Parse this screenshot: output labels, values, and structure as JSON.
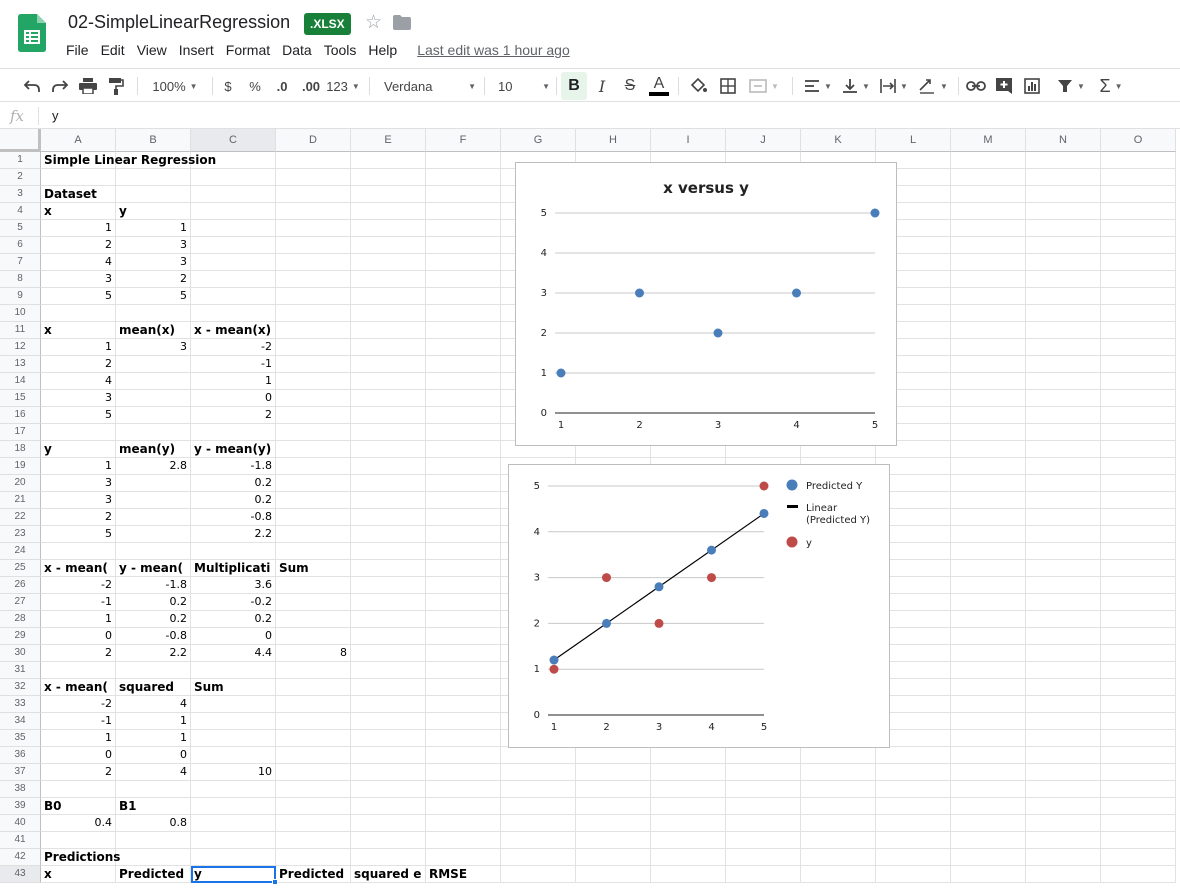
{
  "app": {
    "doc_title": "02-SimpleLinearRegression",
    "badge": ".XLSX",
    "last_edit": "Last edit was 1 hour ago",
    "menu": [
      "File",
      "Edit",
      "View",
      "Insert",
      "Format",
      "Data",
      "Tools",
      "Help"
    ]
  },
  "toolbar": {
    "zoom": "100%",
    "currency": "$",
    "percent": "%",
    "dec_decrease": ".0",
    "dec_increase": ".00",
    "more_formats": "123",
    "font": "Verdana",
    "font_size": "10",
    "bold": "B",
    "italic": "I",
    "strike": "S",
    "text_color": "A",
    "text_color_value": "#000000"
  },
  "formula_bar": {
    "fx": "fx",
    "content": "y"
  },
  "grid": {
    "columns": [
      "A",
      "B",
      "C",
      "D",
      "E",
      "F",
      "G",
      "H",
      "I",
      "J",
      "K",
      "L",
      "M",
      "N",
      "O"
    ],
    "active_column": "C",
    "active_row": 43,
    "rows": [
      {
        "n": 1,
        "A": "Simple Linear Regression",
        "bold": true
      },
      {
        "n": 2
      },
      {
        "n": 3,
        "A": "Dataset",
        "bold": true
      },
      {
        "n": 4,
        "A": "x",
        "B": "y",
        "bold": true
      },
      {
        "n": 5,
        "A": "1",
        "B": "1"
      },
      {
        "n": 6,
        "A": "2",
        "B": "3"
      },
      {
        "n": 7,
        "A": "4",
        "B": "3"
      },
      {
        "n": 8,
        "A": "3",
        "B": "2"
      },
      {
        "n": 9,
        "A": "5",
        "B": "5"
      },
      {
        "n": 10
      },
      {
        "n": 11,
        "A": "x",
        "B": "mean(x)",
        "C": "x - mean(x)",
        "bold": true
      },
      {
        "n": 12,
        "A": "1",
        "B": "3",
        "C": "-2"
      },
      {
        "n": 13,
        "A": "2",
        "C": "-1"
      },
      {
        "n": 14,
        "A": "4",
        "C": "1"
      },
      {
        "n": 15,
        "A": "3",
        "C": "0"
      },
      {
        "n": 16,
        "A": "5",
        "C": "2"
      },
      {
        "n": 17
      },
      {
        "n": 18,
        "A": "y",
        "B": "mean(y)",
        "C": "y - mean(y)",
        "bold": true
      },
      {
        "n": 19,
        "A": "1",
        "B": "2.8",
        "C": "-1.8"
      },
      {
        "n": 20,
        "A": "3",
        "C": "0.2"
      },
      {
        "n": 21,
        "A": "3",
        "C": "0.2"
      },
      {
        "n": 22,
        "A": "2",
        "C": "-0.8"
      },
      {
        "n": 23,
        "A": "5",
        "C": "2.2"
      },
      {
        "n": 24
      },
      {
        "n": 25,
        "A": "x - mean(",
        "B": "y - mean(",
        "C": "Multiplicati",
        "D": "Sum",
        "bold": true
      },
      {
        "n": 26,
        "A": "-2",
        "B": "-1.8",
        "C": "3.6"
      },
      {
        "n": 27,
        "A": "-1",
        "B": "0.2",
        "C": "-0.2"
      },
      {
        "n": 28,
        "A": "1",
        "B": "0.2",
        "C": "0.2"
      },
      {
        "n": 29,
        "A": "0",
        "B": "-0.8",
        "C": "0"
      },
      {
        "n": 30,
        "A": "2",
        "B": "2.2",
        "C": "4.4",
        "D": "8"
      },
      {
        "n": 31
      },
      {
        "n": 32,
        "A": "x - mean(",
        "B": "squared",
        "C": "Sum",
        "bold": true
      },
      {
        "n": 33,
        "A": "-2",
        "B": "4"
      },
      {
        "n": 34,
        "A": "-1",
        "B": "1"
      },
      {
        "n": 35,
        "A": "1",
        "B": "1"
      },
      {
        "n": 36,
        "A": "0",
        "B": "0"
      },
      {
        "n": 37,
        "A": "2",
        "B": "4",
        "C": "10"
      },
      {
        "n": 38
      },
      {
        "n": 39,
        "A": "B0",
        "B": "B1",
        "bold": true
      },
      {
        "n": 40,
        "A": "0.4",
        "B": "0.8"
      },
      {
        "n": 41
      },
      {
        "n": 42,
        "A": "Predictions",
        "bold": true
      },
      {
        "n": 43,
        "A": "x",
        "B": "Predicted",
        "C": "y",
        "D": "Predicted",
        "E": "squared e",
        "F": "RMSE",
        "bold": true
      }
    ]
  },
  "chart_data": [
    {
      "type": "scatter",
      "title": "x versus y",
      "x": [
        1,
        2,
        4,
        3,
        5
      ],
      "y": [
        1,
        3,
        3,
        2,
        5
      ],
      "xlim": [
        1,
        5
      ],
      "ylim": [
        0,
        5
      ],
      "xticks": [
        1,
        2,
        3,
        4,
        5
      ],
      "yticks": [
        0,
        1,
        2,
        3,
        4,
        5
      ],
      "grid": true,
      "color": "#4a7ebb"
    },
    {
      "type": "scatter",
      "title": "",
      "xlim": [
        1,
        5
      ],
      "ylim": [
        0,
        5
      ],
      "xticks": [
        1,
        2,
        3,
        4,
        5
      ],
      "yticks": [
        0,
        1,
        2,
        3,
        4,
        5
      ],
      "grid": true,
      "legend": "right",
      "series": [
        {
          "name": "Predicted Y",
          "x": [
            1,
            2,
            3,
            4,
            5
          ],
          "y": [
            1.2,
            2.0,
            2.8,
            3.6,
            4.4
          ],
          "color": "#4a7ebb"
        },
        {
          "name": "Linear (Predicted Y)",
          "kind": "line",
          "x": [
            1,
            5
          ],
          "y": [
            1.2,
            4.4
          ],
          "color": "#000000"
        },
        {
          "name": "y",
          "x": [
            1,
            2,
            4,
            3,
            5
          ],
          "y": [
            1,
            3,
            3,
            2,
            5
          ],
          "color": "#be4b48"
        }
      ],
      "legend_lines": [
        [
          "Predicted Y"
        ],
        [
          "Linear",
          "(Predicted Y)"
        ],
        [
          "y"
        ]
      ]
    }
  ]
}
